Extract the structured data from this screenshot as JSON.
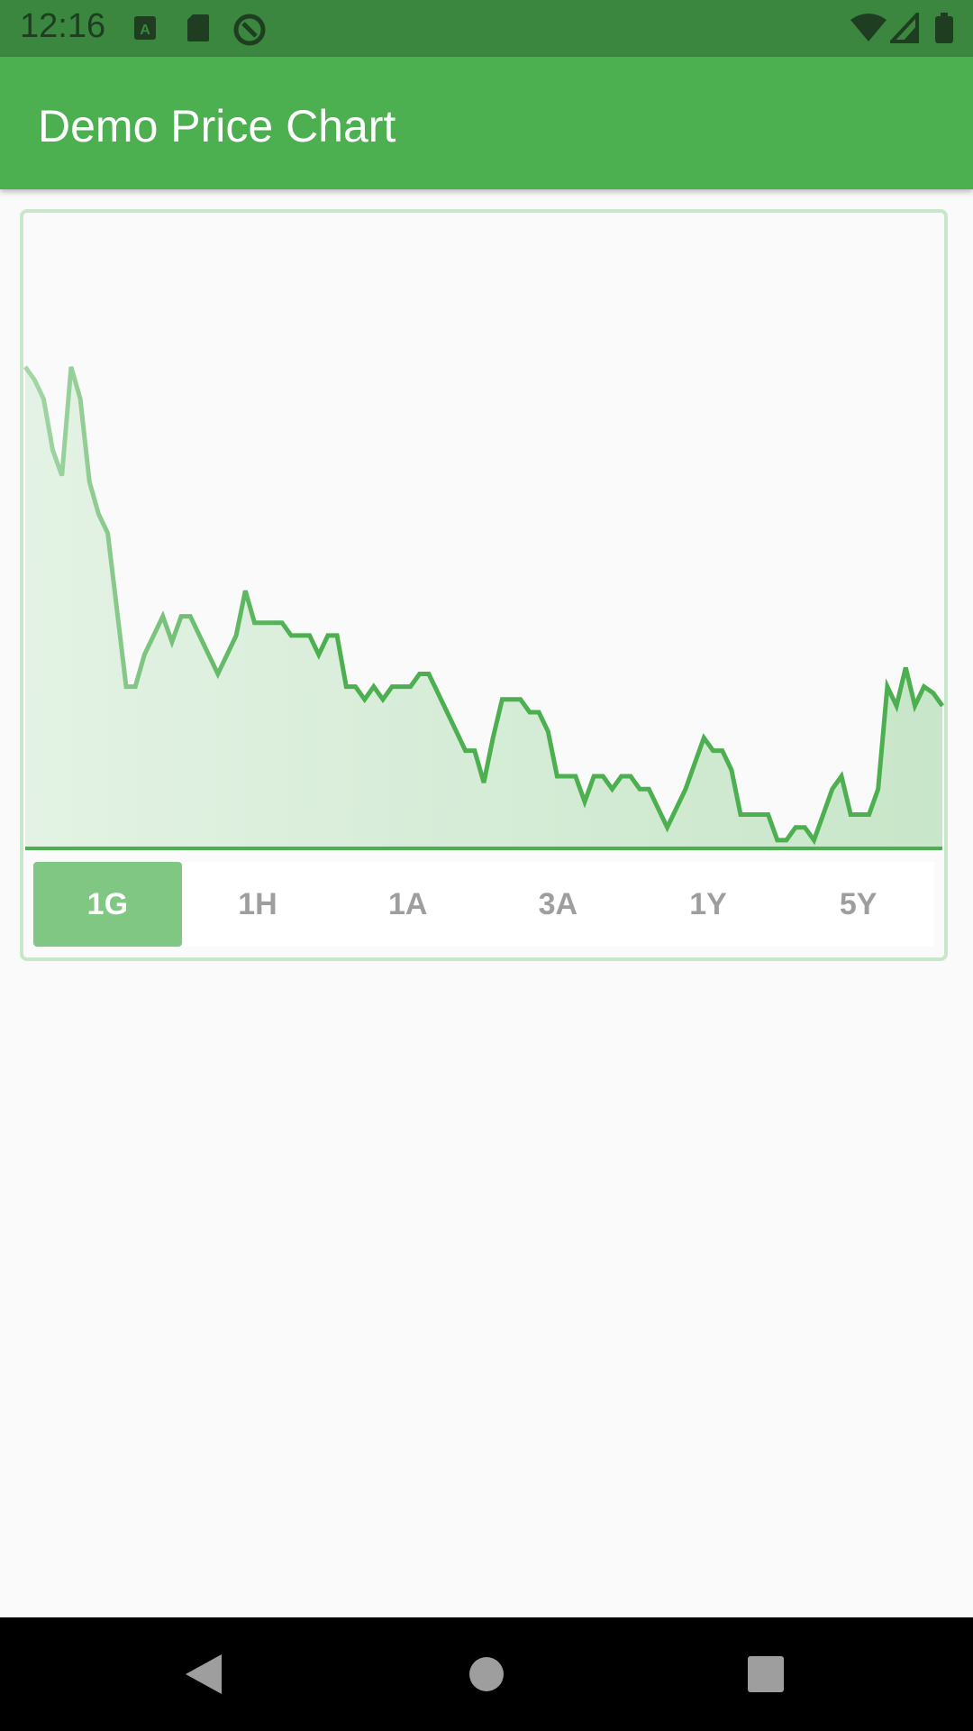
{
  "status_bar": {
    "time": "12:16",
    "icons_left": [
      "text-notification-icon",
      "sd-card-icon",
      "data-saver-icon"
    ],
    "icons_right": [
      "wifi-icon",
      "cell-signal-icon",
      "battery-icon"
    ]
  },
  "app_bar": {
    "title": "Demo Price Chart"
  },
  "range_selector": {
    "options": [
      "1G",
      "1H",
      "1A",
      "3A",
      "1Y",
      "5Y"
    ],
    "selected": "1G"
  },
  "colors": {
    "status_bar": "#3b873f",
    "app_bar": "#4caf50",
    "line": "#4caf50",
    "area_fill": "#c8e6c9",
    "selected_range": "#81c784"
  },
  "chart_data": {
    "type": "area",
    "title": "",
    "xlabel": "",
    "ylabel": "",
    "grid": false,
    "series": [
      {
        "values": [
          100,
          98,
          95,
          87,
          83,
          100,
          95,
          82,
          77,
          74,
          62,
          50,
          50,
          55,
          58,
          61,
          57,
          61,
          61,
          58,
          55,
          52,
          55,
          58,
          65,
          60,
          60,
          60,
          60,
          58,
          58,
          58,
          55,
          58,
          58,
          50,
          50,
          48,
          50,
          48,
          50,
          50,
          50,
          52,
          52,
          49,
          46,
          43,
          40,
          40,
          35,
          42,
          48,
          48,
          48,
          46,
          46,
          43,
          36,
          36,
          36,
          32,
          36,
          36,
          34,
          36,
          36,
          34,
          34,
          31,
          28,
          31,
          34,
          38,
          42,
          40,
          40,
          37,
          30,
          30,
          30,
          30,
          26,
          26,
          28,
          28,
          26,
          30,
          34,
          36,
          30,
          30,
          30,
          34,
          50,
          47,
          53,
          47,
          50,
          49,
          47
        ]
      }
    ],
    "ylim": [
      25,
      110
    ]
  }
}
